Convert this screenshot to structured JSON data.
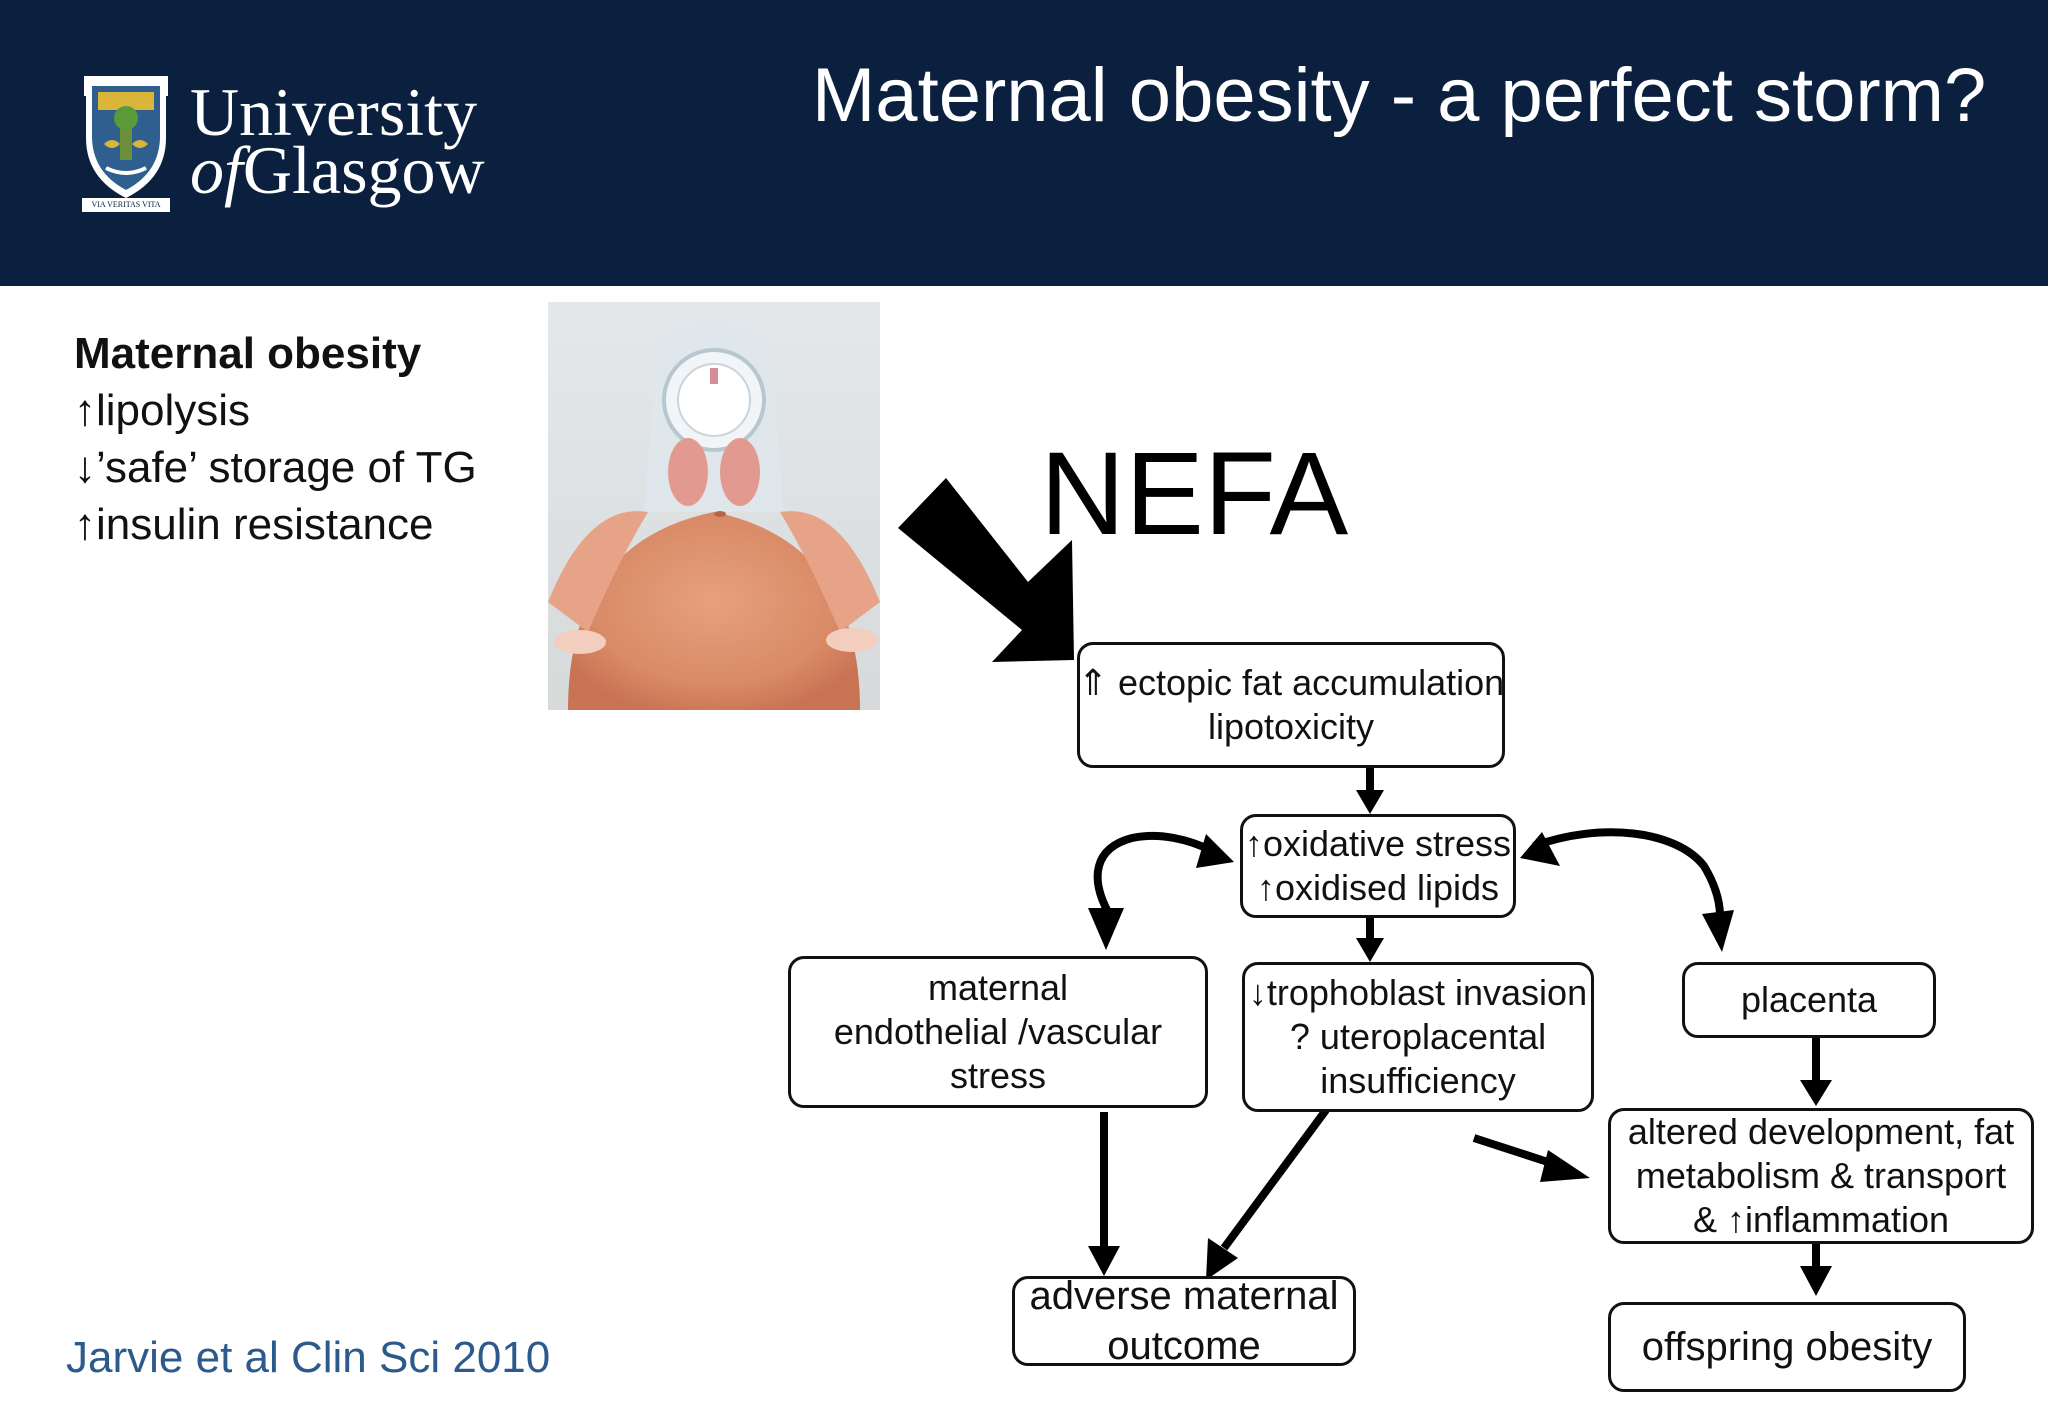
{
  "header": {
    "logo": {
      "line1": "University",
      "line2_of": "of",
      "line2_rest": "Glasgow",
      "crest_motto": "VIA VERITAS VITA"
    },
    "title": "Maternal obesity - a perfect storm?"
  },
  "bullets": {
    "heading": "Maternal obesity",
    "items": [
      "↑lipolysis",
      "↓’safe’ storage of TG",
      "↑insulin resistance"
    ]
  },
  "diagram": {
    "nefa_label": "NEFA",
    "boxes": {
      "ectopic": {
        "line1": "⇑ ectopic fat accumulation",
        "line2": "lipotoxicity"
      },
      "oxidative": {
        "line1": "↑oxidative stress",
        "line2": "↑oxidised lipids"
      },
      "endothelial": {
        "line1": "maternal",
        "line2": "endothelial /vascular",
        "line3": "stress"
      },
      "trophoblast": {
        "line1": "↓trophoblast invasion",
        "line2": "? uteroplacental",
        "line3": "insufficiency"
      },
      "placenta": {
        "line1": "placenta"
      },
      "altered": {
        "line1": "altered development, fat",
        "line2": "metabolism & transport",
        "line3": "& ↑inflammation"
      },
      "adverse": {
        "line1": "adverse maternal",
        "line2": "outcome"
      },
      "offspring": {
        "line1": "offspring obesity"
      }
    }
  },
  "citation": "Jarvie et al Clin Sci 2010",
  "colors": {
    "header_bg": "#0b1f3f",
    "citation": "#2d5a8c",
    "text": "#111111"
  }
}
